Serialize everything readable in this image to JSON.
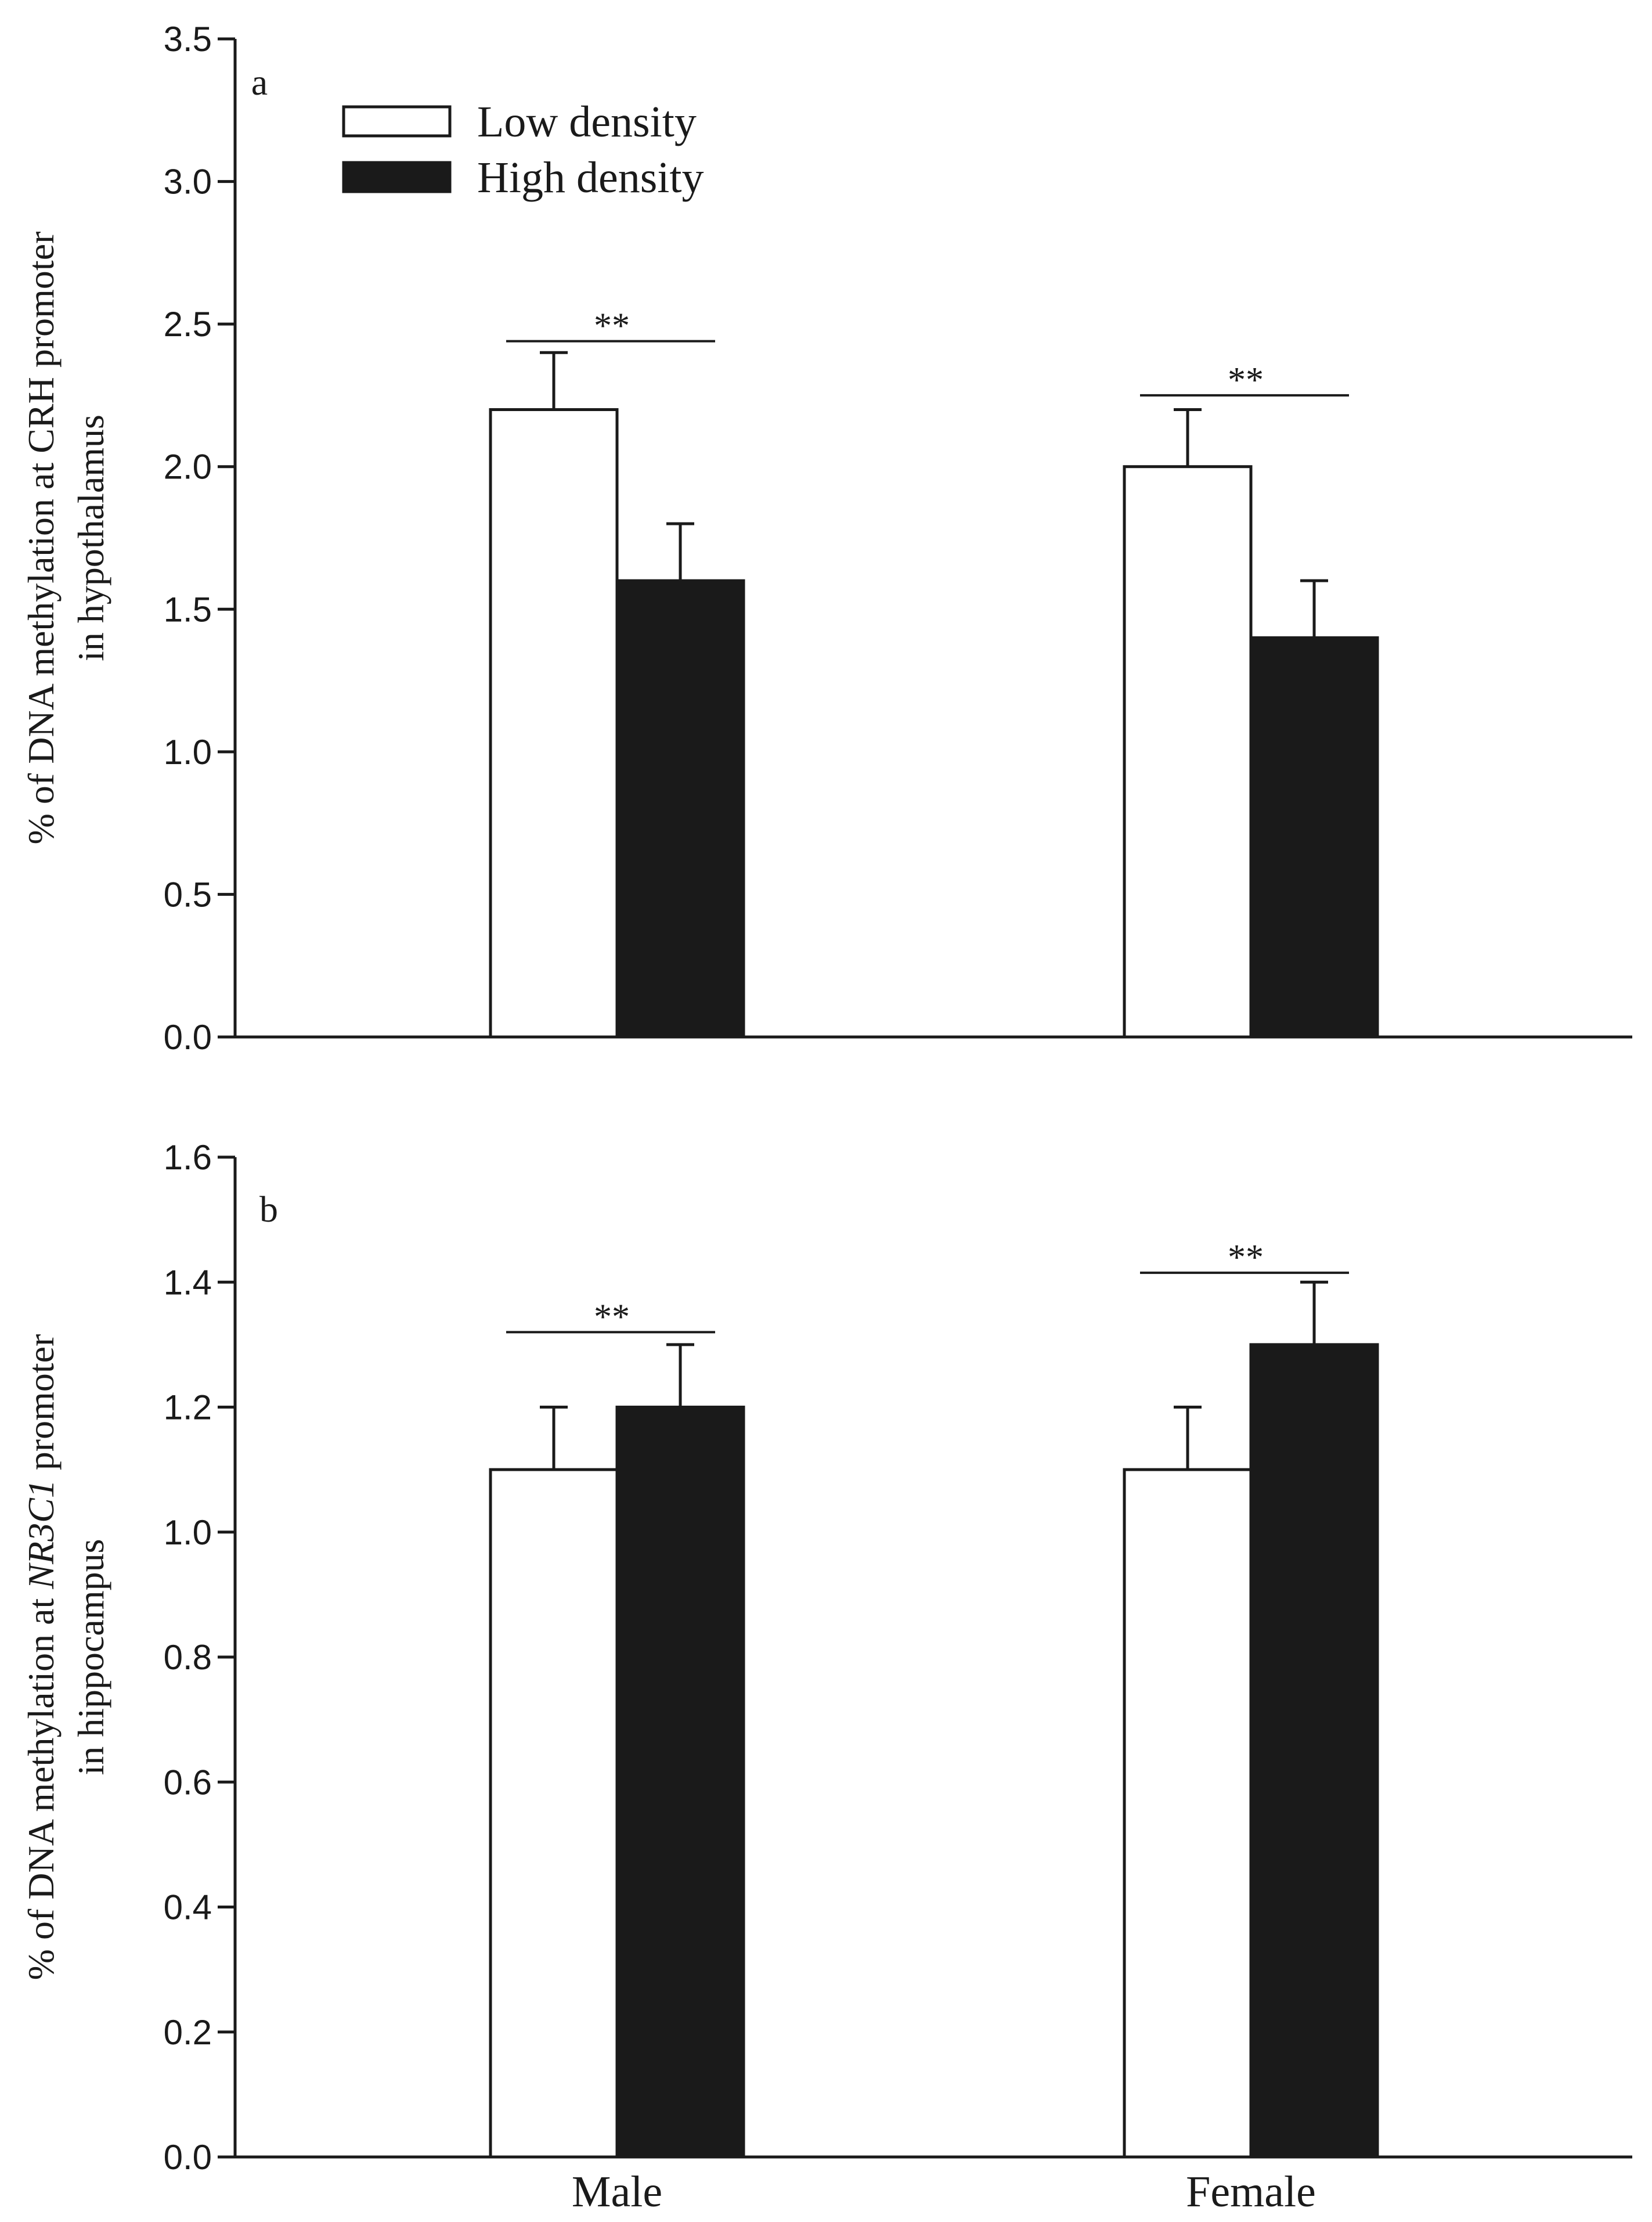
{
  "chart_data": [
    {
      "type": "bar",
      "panel_label": "a",
      "title": "",
      "xlabel": "",
      "ylabel_lines": [
        [
          {
            "text": "% of DNA methylation at CRH promoter",
            "italic": false
          }
        ],
        [
          {
            "text": "in hypothalamus",
            "italic": false
          }
        ]
      ],
      "ylim": [
        0,
        3.5
      ],
      "yticks": [
        "0.0",
        "0.5",
        "1.0",
        "1.5",
        "2.0",
        "2.5",
        "3.0",
        "3.5"
      ],
      "categories": [
        "Male",
        "Female"
      ],
      "show_category_labels": false,
      "series": [
        {
          "name": "Low density",
          "fill": "#ffffff",
          "values": [
            2.2,
            2.0
          ],
          "errors": [
            0.2,
            0.2
          ]
        },
        {
          "name": "High density",
          "fill": "#1a1a1a",
          "values": [
            1.6,
            1.4
          ],
          "errors": [
            0.2,
            0.2
          ]
        }
      ],
      "significance": [
        {
          "category": 0,
          "label": "**",
          "y": 2.44
        },
        {
          "category": 1,
          "label": "**",
          "y": 2.25
        }
      ],
      "legend": {
        "position": "top-left",
        "entries": [
          "Low density",
          "High density"
        ]
      }
    },
    {
      "type": "bar",
      "panel_label": "b",
      "title": "",
      "xlabel": "",
      "ylabel_lines": [
        [
          {
            "text": "% of DNA methylation at ",
            "italic": false
          },
          {
            "text": "NR3C1",
            "italic": true
          },
          {
            "text": " promoter",
            "italic": false
          }
        ],
        [
          {
            "text": "in hippocampus",
            "italic": false
          }
        ]
      ],
      "ylim": [
        0,
        1.6
      ],
      "yticks": [
        "0.0",
        "0.2",
        "0.4",
        "0.6",
        "0.8",
        "1.0",
        "1.2",
        "1.4",
        "1.6"
      ],
      "categories": [
        "Male",
        "Female"
      ],
      "show_category_labels": true,
      "series": [
        {
          "name": "Low density",
          "fill": "#ffffff",
          "values": [
            1.1,
            1.1
          ],
          "errors": [
            0.1,
            0.1
          ]
        },
        {
          "name": "High density",
          "fill": "#1a1a1a",
          "values": [
            1.2,
            1.3
          ],
          "errors": [
            0.1,
            0.1
          ]
        }
      ],
      "significance": [
        {
          "category": 0,
          "label": "**",
          "y": 1.32
        },
        {
          "category": 1,
          "label": "**",
          "y": 1.415
        }
      ]
    }
  ]
}
